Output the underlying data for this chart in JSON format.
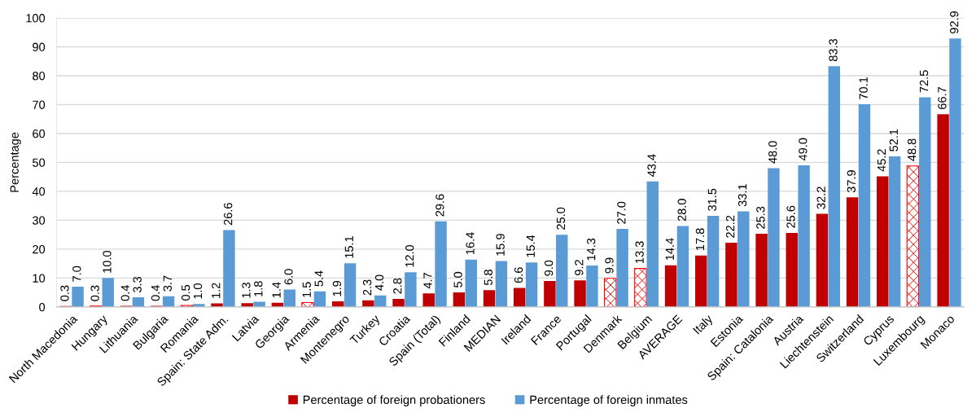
{
  "chart_data": {
    "type": "bar",
    "categories": [
      "North Macedonia",
      "Hungary",
      "Lithuania",
      "Bulgaria",
      "Romania",
      "Spain: State Adm.",
      "Latvia",
      "Georgia",
      "Armenia",
      "Montenegro",
      "Turkey",
      "Croatia",
      "Spain (Total)",
      "Finland",
      "MEDIAN",
      "Ireland",
      "France",
      "Portugal",
      "Denmark",
      "Belgium",
      "AVERAGE",
      "Italy",
      "Estonia",
      "Spain: Catalonia",
      "Austria",
      "Liechtenstein",
      "Switzerland",
      "Cyprus",
      "Luxembourg",
      "Monaco"
    ],
    "series": [
      {
        "name": "Percentage of foreign probationers",
        "color": "#c00000",
        "colors": [
          "#c00000",
          "#ff0000",
          "#c00000",
          "#c00000",
          "#ff0000",
          "#c00000",
          "#c00000",
          "#c00000",
          "#ff0000",
          "#c00000",
          "#c00000",
          "#c00000",
          "#c00000",
          "#c00000",
          "#c00000",
          "#c00000",
          "#c00000",
          "#c00000",
          "#ff0000",
          "#ff0000",
          "#c00000",
          "#c00000",
          "#c00000",
          "#c00000",
          "#c00000",
          "#c00000",
          "#c00000",
          "#c00000",
          "#ff0000",
          "#c00000"
        ],
        "values": [
          0.3,
          0.3,
          0.4,
          0.4,
          0.5,
          1.2,
          1.3,
          1.4,
          1.5,
          1.9,
          2.3,
          2.8,
          4.7,
          5.0,
          5.8,
          6.6,
          9.0,
          9.2,
          9.9,
          13.3,
          14.4,
          17.8,
          22.2,
          25.3,
          25.6,
          32.2,
          37.9,
          45.2,
          48.8,
          66.7
        ],
        "value_labels": [
          "0.3",
          "0.3",
          "0.4",
          "0.4",
          "0.5",
          "1.2",
          "1.3",
          "1.4",
          "1.5",
          "1.9",
          "2.3",
          "2.8",
          "4.7",
          "5.0",
          "5.8",
          "6.6",
          "9.0",
          "9.2",
          "9.9",
          "13.3",
          "14.4",
          "17.8",
          "22.2",
          "25.3",
          "25.6",
          "32.2",
          "37.9",
          "45.2",
          "48.8",
          "66.7"
        ]
      },
      {
        "name": "Percentage of foreign inmates",
        "color": "#5b9bd5",
        "values": [
          7.0,
          10.0,
          3.3,
          3.7,
          1.0,
          26.6,
          1.8,
          6.0,
          5.4,
          15.1,
          4.0,
          12.0,
          29.6,
          16.4,
          15.9,
          15.4,
          25.0,
          14.3,
          27.0,
          43.4,
          28.0,
          31.5,
          33.1,
          48.0,
          49.0,
          83.3,
          70.1,
          52.1,
          72.5,
          92.9
        ],
        "value_labels": [
          "7.0",
          "10.0",
          "3.3",
          "3.7",
          "1.0",
          "26.6",
          "1.8",
          "6.0",
          "5.4",
          "15.1",
          "4.0",
          "12.0",
          "29.6",
          "16.4",
          "15.9",
          "15.4",
          "25.0",
          "14.3",
          "27.0",
          "43.4",
          "28.0",
          "31.5",
          "33.1",
          "48.0",
          "49.0",
          "83.3",
          "70.1",
          "52.1",
          "72.5",
          "92.9"
        ]
      }
    ],
    "ylabel": "Percentage",
    "ylim": [
      0,
      100
    ],
    "yticks": [
      0,
      10,
      20,
      30,
      40,
      50,
      60,
      70,
      80,
      90,
      100
    ],
    "grid": "y",
    "legend": "bottom"
  }
}
